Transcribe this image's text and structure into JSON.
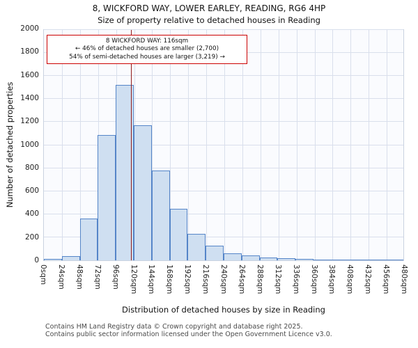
{
  "title": "8, WICKFORD WAY, LOWER EARLEY, READING, RG6 4HP",
  "subtitle": "Size of property relative to detached houses in Reading",
  "annotation": {
    "line1": "8 WICKFORD WAY: 116sqm",
    "line2": "← 46% of detached houses are smaller (2,700)",
    "line3": "54% of semi-detached houses are larger (3,219) →"
  },
  "footer": {
    "line1": "Contains HM Land Registry data © Crown copyright and database right 2025.",
    "line2": "Contains public sector information licensed under the Open Government Licence v3.0."
  },
  "chart_data": {
    "type": "bar",
    "title": "8, WICKFORD WAY, LOWER EARLEY, READING, RG6 4HP",
    "subtitle": "Size of property relative to detached houses in Reading",
    "xlabel": "Distribution of detached houses by size in Reading",
    "ylabel": "Number of detached properties",
    "categories": [
      "0sqm",
      "24sqm",
      "48sqm",
      "72sqm",
      "96sqm",
      "120sqm",
      "144sqm",
      "168sqm",
      "192sqm",
      "216sqm",
      "240sqm",
      "264sqm",
      "288sqm",
      "312sqm",
      "336sqm",
      "360sqm",
      "384sqm",
      "408sqm",
      "432sqm",
      "456sqm",
      "480sqm"
    ],
    "bin_width_sqm": 24,
    "values": [
      10,
      35,
      365,
      1090,
      1520,
      1170,
      780,
      450,
      230,
      125,
      60,
      45,
      25,
      20,
      10,
      5,
      5,
      5,
      3,
      2
    ],
    "ylim": [
      0,
      2000
    ],
    "xlim_sqm": [
      0,
      480
    ],
    "ytick_step": 200,
    "marker_value_sqm": 116,
    "grid": true,
    "legend": "none",
    "bar_fill": "#cfdff1",
    "bar_border": "#5585c8",
    "marker_color": "#8f1a1a",
    "annotation_border": "#cc0000"
  }
}
